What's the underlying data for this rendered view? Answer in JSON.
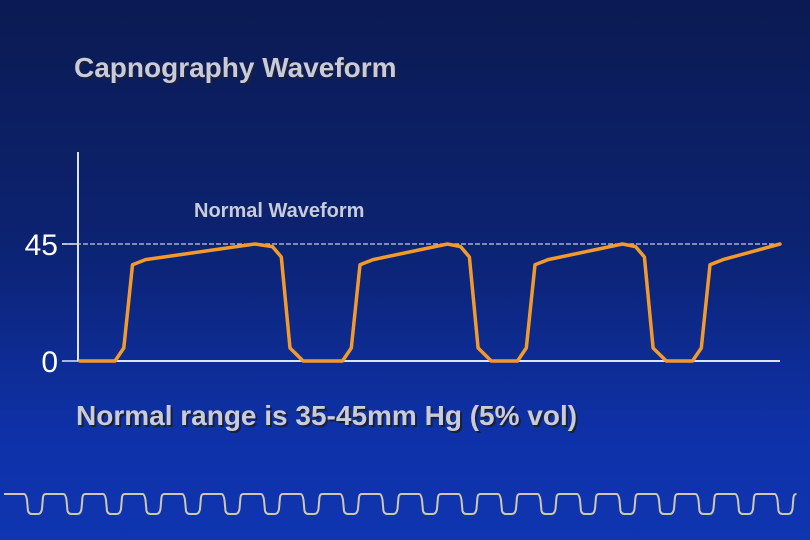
{
  "slide": {
    "title": "Capnography Waveform",
    "caption": "Normal range is 35-45mm Hg (5% vol)"
  },
  "colors": {
    "waveform": "#f39a2c",
    "axis": "#dfe3ef",
    "reference_line": "#c9cbd8",
    "text": "#c9cbd8"
  },
  "chart_data": {
    "type": "line",
    "title": "",
    "xlabel": "",
    "ylabel": "",
    "y_ticks": [
      0,
      45
    ],
    "ylim": [
      0,
      45
    ],
    "reference_line": {
      "y": 45,
      "style": "dashed"
    },
    "annotation": "Normal Waveform",
    "grid": false,
    "series": [
      {
        "points": [
          [
            0,
            0
          ],
          [
            0.4,
            0
          ],
          [
            0.5,
            5
          ],
          [
            0.6,
            37
          ],
          [
            0.75,
            39
          ],
          [
            2.0,
            45
          ],
          [
            2.2,
            44
          ],
          [
            2.3,
            40
          ],
          [
            2.4,
            5
          ],
          [
            2.55,
            0
          ],
          [
            3.0,
            0
          ],
          [
            3.1,
            5
          ],
          [
            3.2,
            37
          ],
          [
            3.35,
            39
          ],
          [
            4.2,
            45
          ],
          [
            4.35,
            44
          ],
          [
            4.45,
            40
          ],
          [
            4.55,
            5
          ],
          [
            4.7,
            0
          ],
          [
            5.0,
            0
          ],
          [
            5.1,
            5
          ],
          [
            5.2,
            37
          ],
          [
            5.35,
            39
          ],
          [
            6.2,
            45
          ],
          [
            6.35,
            44
          ],
          [
            6.45,
            40
          ],
          [
            6.55,
            5
          ],
          [
            6.7,
            0
          ],
          [
            7.0,
            0
          ],
          [
            7.1,
            5
          ],
          [
            7.2,
            37
          ],
          [
            7.35,
            39
          ],
          [
            8.0,
            45
          ]
        ]
      }
    ]
  }
}
